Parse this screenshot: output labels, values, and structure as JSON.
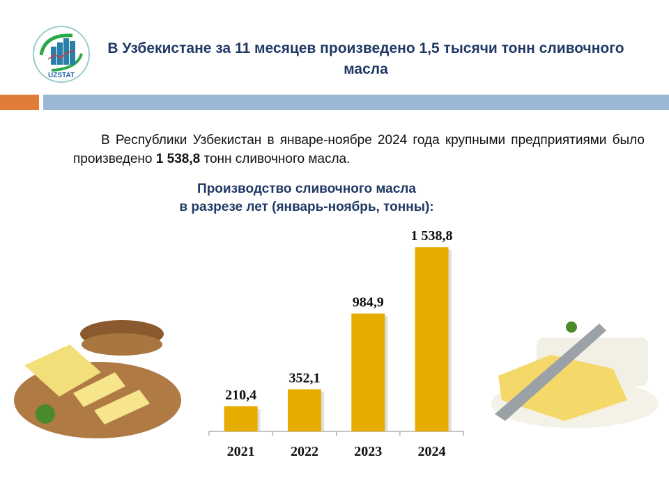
{
  "logo_text": "UZSTAT",
  "title": "В Узбекистане за 11 месяцев произведено 1,5 тысячи тонн сливочного масла",
  "paragraph": {
    "before": "В Республики Узбекистан в январе-ноябре 2024 года крупными предприя­тиями было произведено ",
    "bold": "1 538,8",
    "after": " тонн сливочного масла."
  },
  "chart_title_line1": "Производство сливочного масла",
  "chart_title_line2": "в разрезе лет (январь-ноябрь, тонны):",
  "chart_data": {
    "type": "bar",
    "categories": [
      "2021",
      "2022",
      "2023",
      "2024"
    ],
    "values": [
      210.4,
      352.1,
      984.9,
      1538.8
    ],
    "labels": [
      "210,4",
      "352,1",
      "984,9",
      "1 538,8"
    ],
    "title": "Производство сливочного масла в разрезе лет (январь-ноябрь, тонны):",
    "xlabel": "",
    "ylabel": "",
    "ylim": [
      0,
      1540
    ],
    "color": "#e6ad00"
  }
}
